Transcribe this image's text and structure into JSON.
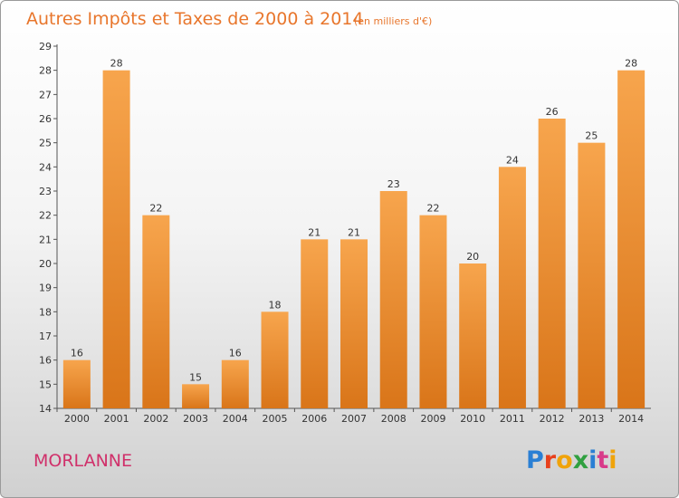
{
  "title": "Autres Impôts et Taxes de 2000 à 2014",
  "title_unit": "(en milliers d'€)",
  "commune": "MORLANNE",
  "logo": {
    "text": "Proxiti",
    "letters": [
      "P",
      "r",
      "o",
      "x",
      "i",
      "t",
      "i"
    ],
    "colors": [
      "#2a7fd4",
      "#e8401c",
      "#f0a30a",
      "#30a040",
      "#2a7fd4",
      "#d83a8a",
      "#f0a30a"
    ]
  },
  "colors": {
    "bar_top": "#f7a54d",
    "bar_bottom": "#d97519",
    "accent": "#e8762c"
  },
  "chart_data": {
    "type": "bar",
    "title": "Autres Impôts et Taxes de 2000 à 2014",
    "subtitle": "(en milliers d'€)",
    "xlabel": "",
    "ylabel": "",
    "categories": [
      "2000",
      "2001",
      "2002",
      "2003",
      "2004",
      "2005",
      "2006",
      "2007",
      "2008",
      "2009",
      "2010",
      "2011",
      "2012",
      "2013",
      "2014"
    ],
    "values": [
      16,
      28,
      22,
      15,
      16,
      18,
      21,
      21,
      23,
      22,
      20,
      24,
      26,
      25,
      28
    ],
    "ylim": [
      14,
      29
    ],
    "yticks": [
      14,
      15,
      16,
      17,
      18,
      19,
      20,
      21,
      22,
      23,
      24,
      25,
      26,
      27,
      28,
      29
    ],
    "grid": false,
    "legend": "none"
  }
}
